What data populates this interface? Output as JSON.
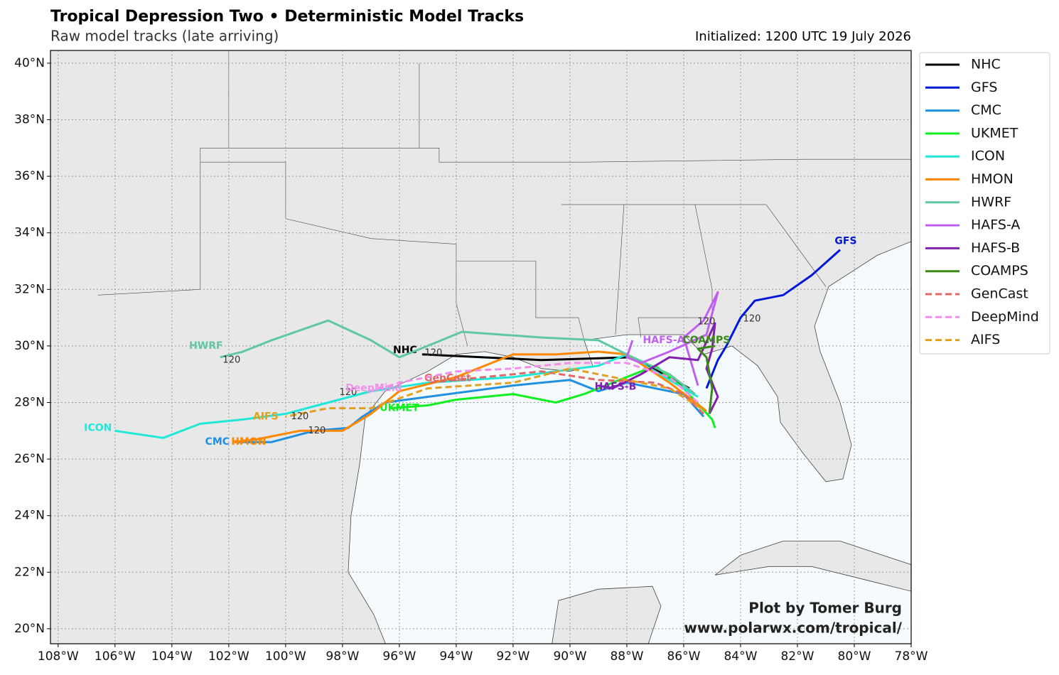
{
  "chart_data": {
    "type": "track_map",
    "title": "Tropical Depression Two • Deterministic Model Tracks",
    "subtitle": "Raw model tracks (late arriving)",
    "initialized": "Initialized: 1200 UTC 19 July 2026",
    "credit": [
      "Plot by Tomer Burg",
      "www.polarwx.com/tropical/"
    ],
    "xlim": [
      -108.27,
      -78
    ],
    "ylim": [
      19.47,
      40.45
    ],
    "grid": true,
    "legend": "outside-right",
    "xticks": [
      {
        "value": -108,
        "label": "108°W"
      },
      {
        "value": -106,
        "label": "106°W"
      },
      {
        "value": -104,
        "label": "104°W"
      },
      {
        "value": -102,
        "label": "102°W"
      },
      {
        "value": -100,
        "label": "100°W"
      },
      {
        "value": -98,
        "label": "98°W"
      },
      {
        "value": -96,
        "label": "96°W"
      },
      {
        "value": -94,
        "label": "94°W"
      },
      {
        "value": -92,
        "label": "92°W"
      },
      {
        "value": -90,
        "label": "90°W"
      },
      {
        "value": -88,
        "label": "88°W"
      },
      {
        "value": -86,
        "label": "86°W"
      },
      {
        "value": -84,
        "label": "84°W"
      },
      {
        "value": -82,
        "label": "82°W"
      },
      {
        "value": -80,
        "label": "80°W"
      },
      {
        "value": -78,
        "label": "78°W"
      }
    ],
    "yticks": [
      {
        "value": 20,
        "label": "20°N"
      },
      {
        "value": 22,
        "label": "22°N"
      },
      {
        "value": 24,
        "label": "24°N"
      },
      {
        "value": 26,
        "label": "26°N"
      },
      {
        "value": 28,
        "label": "28°N"
      },
      {
        "value": 30,
        "label": "30°N"
      },
      {
        "value": 32,
        "label": "32°N"
      },
      {
        "value": 34,
        "label": "34°N"
      },
      {
        "value": 36,
        "label": "36°N"
      },
      {
        "value": 38,
        "label": "38°N"
      },
      {
        "value": 40,
        "label": "40°N"
      }
    ],
    "series": [
      {
        "name": "NHC",
        "color": "#000000",
        "dashed": false,
        "lon": [
          -85.8,
          -87.8,
          -91,
          -95.2
        ],
        "lat": [
          28.5,
          29.6,
          29.5,
          29.7
        ],
        "label_lon": -95.8,
        "label_lat": 29.85,
        "hour_marks": [
          {
            "hour": 120,
            "lon": -94.8,
            "lat": 29.75
          }
        ]
      },
      {
        "name": "GFS",
        "color": "#0018d8",
        "dashed": false,
        "lon": [
          -85.2,
          -84.8,
          -84.5,
          -84,
          -83.5,
          -82.5,
          -81.5,
          -80.5
        ],
        "lat": [
          28.5,
          29.5,
          30,
          31,
          31.6,
          31.8,
          32.5,
          33.4
        ],
        "label_lon": -80.3,
        "label_lat": 33.7,
        "hour_marks": [
          {
            "hour": 120,
            "lon": -83.6,
            "lat": 30.95
          }
        ]
      },
      {
        "name": "CMC",
        "color": "#2090e0",
        "dashed": false,
        "lon": [
          -85.3,
          -86,
          -88,
          -89,
          -90,
          -92,
          -95,
          -96.5,
          -97.3,
          -97.8,
          -99,
          -100.5,
          -101.8
        ],
        "lat": [
          27.5,
          28.3,
          28.7,
          28.4,
          28.8,
          28.6,
          28.2,
          28,
          27.5,
          27.1,
          27,
          26.6,
          26.6
        ],
        "label_lon": -102.4,
        "label_lat": 26.6,
        "hour_marks": []
      },
      {
        "name": "UKMET",
        "color": "#10f020",
        "dashed": false,
        "lon": [
          -84.9,
          -85,
          -86,
          -87,
          -88,
          -89.5,
          -90.5,
          -92,
          -94,
          -95,
          -96.3
        ],
        "lat": [
          27.1,
          27.4,
          28.5,
          29.3,
          28.9,
          28.3,
          28,
          28.3,
          28.1,
          27.9,
          27.8
        ],
        "label_lon": -96,
        "label_lat": 27.8,
        "hour_marks": []
      },
      {
        "name": "ICON",
        "color": "#20e8d8",
        "dashed": false,
        "lon": [
          -85.5,
          -86.5,
          -88,
          -89,
          -92,
          -95,
          -97,
          -98.5,
          -100,
          -101.5,
          -103,
          -104.3,
          -106
        ],
        "lat": [
          28.2,
          28.8,
          29.7,
          29.3,
          28.9,
          28.7,
          28.4,
          28,
          27.6,
          27.4,
          27.25,
          26.75,
          27
        ],
        "label_lon": -106.6,
        "label_lat": 27.1,
        "hour_marks": [
          {
            "hour": 120,
            "lon": -97.8,
            "lat": 28.35
          }
        ]
      },
      {
        "name": "HMON",
        "color": "#ff8800",
        "dashed": false,
        "lon": [
          -85.2,
          -86.5,
          -88,
          -89,
          -90.5,
          -92,
          -94,
          -96,
          -97,
          -98,
          -99.5,
          -101,
          -101.8
        ],
        "lat": [
          27.7,
          28.7,
          29.7,
          29.8,
          29.7,
          29.7,
          28.9,
          28.4,
          27.6,
          27,
          27,
          26.7,
          26.6
        ],
        "label_lon": -101.3,
        "label_lat": 26.6,
        "hour_marks": [
          {
            "hour": 120,
            "lon": -98.9,
            "lat": 27
          }
        ]
      },
      {
        "name": "HWRF",
        "color": "#60c8a0",
        "dashed": false,
        "lon": [
          -85.6,
          -86.5,
          -88,
          -89,
          -91,
          -93.8,
          -95.5,
          -96,
          -97,
          -98.5,
          -100.5,
          -101.5,
          -102.3
        ],
        "lat": [
          28.3,
          29,
          29.7,
          30.2,
          30.3,
          30.5,
          29.8,
          29.6,
          30.2,
          30.9,
          30.2,
          29.8,
          29.6
        ],
        "label_lon": -102.8,
        "label_lat": 30,
        "hour_marks": [
          {
            "hour": 120,
            "lon": -101.9,
            "lat": 29.5
          }
        ]
      },
      {
        "name": "HAFS-A",
        "color": "#c060f0",
        "dashed": false,
        "lon": [
          -85.5,
          -85.7,
          -86,
          -85.3,
          -84.8,
          -85.2,
          -86.5,
          -87.5,
          -88,
          -87.8
        ],
        "lat": [
          28.6,
          29.3,
          30.3,
          30.9,
          31.9,
          30.4,
          29.8,
          29.4,
          29.6,
          30.2
        ],
        "label_lon": -86.7,
        "label_lat": 30.2,
        "hour_marks": [
          {
            "hour": 120,
            "lon": -85.2,
            "lat": 30.85
          }
        ]
      },
      {
        "name": "HAFS-B",
        "color": "#8020b0",
        "dashed": false,
        "lon": [
          -85.1,
          -84.8,
          -85.2,
          -85,
          -84.9,
          -85.5,
          -86.5,
          -87.5,
          -88.5,
          -89
        ],
        "lat": [
          27.6,
          28.2,
          29.2,
          29.9,
          30.8,
          29.5,
          29.6,
          29,
          28.5,
          28.6
        ],
        "label_lon": -88.4,
        "label_lat": 28.55,
        "hour_marks": []
      },
      {
        "name": "COAMPS",
        "color": "#3a8a1a",
        "dashed": false,
        "lon": [
          -85.1,
          -85,
          -85.2,
          -85.5,
          -84.9
        ],
        "lat": [
          27.6,
          28.5,
          29.6,
          29.9,
          30
        ],
        "label_lon": -85.2,
        "label_lat": 30.2,
        "hour_marks": []
      },
      {
        "name": "GenCast",
        "color": "#e06868",
        "dashed": true,
        "lon": [
          -85.3,
          -86,
          -87,
          -89,
          -91,
          -93,
          -95
        ],
        "lat": [
          27.6,
          28.3,
          28.7,
          28.8,
          29.1,
          28.9,
          28.7
        ],
        "label_lon": -94.3,
        "label_lat": 28.85,
        "hour_marks": []
      },
      {
        "name": "DeepMind",
        "color": "#f090e8",
        "dashed": true,
        "lon": [
          -85.5,
          -86.5,
          -88,
          -90,
          -92,
          -94,
          -96,
          -97
        ],
        "lat": [
          28,
          28.9,
          29.4,
          29.4,
          29.2,
          29.1,
          28.7,
          28.4
        ],
        "label_lon": -96.9,
        "label_lat": 28.5,
        "hour_marks": []
      },
      {
        "name": "AIFS",
        "color": "#e0a020",
        "dashed": true,
        "lon": [
          -85.4,
          -86.5,
          -88.5,
          -90,
          -92,
          -95,
          -97,
          -98.5,
          -100
        ],
        "lat": [
          27.8,
          28.5,
          28.9,
          29.2,
          28.7,
          28.5,
          27.8,
          27.8,
          27.5
        ],
        "label_lon": -100.7,
        "label_lat": 27.5,
        "hour_marks": [
          {
            "hour": 120,
            "lon": -99.5,
            "lat": 27.5
          }
        ]
      }
    ]
  }
}
